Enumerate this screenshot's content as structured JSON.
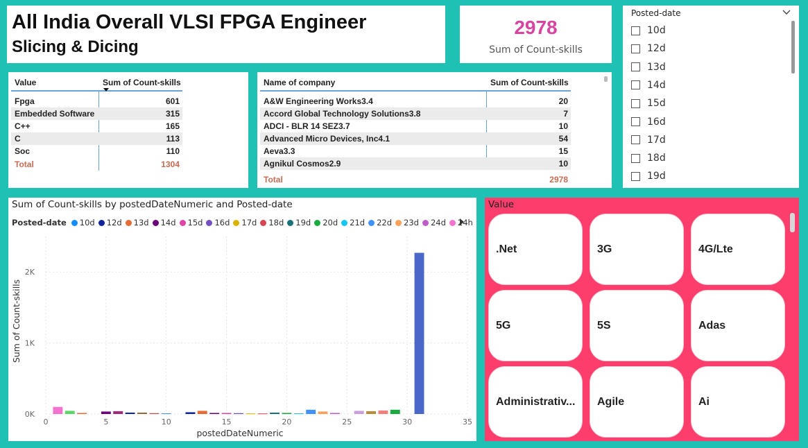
{
  "title": {
    "line1": "All India Overall VLSI FPGA Engineer",
    "line2": "Slicing & Dicing"
  },
  "card": {
    "value": "2978",
    "label": "Sum of Count-skills"
  },
  "slicer": {
    "header": "Posted-date",
    "items": [
      "10d",
      "12d",
      "13d",
      "14d",
      "15d",
      "16d",
      "17d",
      "18d",
      "19d"
    ]
  },
  "skills_table": {
    "col_value": "Value",
    "col_sum": "Sum of Count-skills",
    "rows": [
      {
        "name": "Fpga",
        "count": "601"
      },
      {
        "name": "Embedded Software",
        "count": "315"
      },
      {
        "name": "C++",
        "count": "165"
      },
      {
        "name": "C",
        "count": "113"
      },
      {
        "name": "Soc",
        "count": "110"
      }
    ],
    "total_label": "Total",
    "total_value": "1304"
  },
  "company_table": {
    "col_company": "Name of company",
    "col_sum": "Sum of Count-skills",
    "rows": [
      {
        "name": "A&W Engineering Works3.4",
        "count": "20"
      },
      {
        "name": "Accord Global Technology Solutions3.8",
        "count": "7"
      },
      {
        "name": "ADCI - BLR 14 SEZ3.7",
        "count": "10"
      },
      {
        "name": "Advanced Micro Devices, Inc4.1",
        "count": "54"
      },
      {
        "name": "Aeva3.3",
        "count": "15"
      },
      {
        "name": "Agnikul Cosmos2.9",
        "count": "10"
      }
    ],
    "total_label": "Total",
    "total_value": "2978"
  },
  "chart": {
    "title": "Sum of Count-skills by postedDateNumeric and Posted-date",
    "legend_title": "Posted-date"
  },
  "chart_data": {
    "type": "bar",
    "title": "Sum of Count-skills by postedDateNumeric and Posted-date",
    "xlabel": "postedDateNumeric",
    "ylabel": "Sum of Count-skills",
    "xlim": [
      0,
      35
    ],
    "ylim": [
      0,
      2500
    ],
    "x_ticks": [
      "0",
      "5",
      "10",
      "15",
      "20",
      "25",
      "30",
      "35"
    ],
    "y_ticks": [
      {
        "v": 0,
        "label": "0K"
      },
      {
        "v": 1000,
        "label": "1K"
      },
      {
        "v": 2000,
        "label": "2K"
      }
    ],
    "grid": true,
    "legend_position": "top-left",
    "series": [
      {
        "name": "10d",
        "color": "#118dff"
      },
      {
        "name": "12d",
        "color": "#12239e"
      },
      {
        "name": "13d",
        "color": "#e66c37"
      },
      {
        "name": "14d",
        "color": "#6b007b"
      },
      {
        "name": "15d",
        "color": "#e044a7"
      },
      {
        "name": "16d",
        "color": "#744ec2"
      },
      {
        "name": "17d",
        "color": "#d9b300"
      },
      {
        "name": "18d",
        "color": "#d64550"
      },
      {
        "name": "19d",
        "color": "#197278"
      },
      {
        "name": "20d",
        "color": "#1aab40"
      },
      {
        "name": "21d",
        "color": "#15c6f4"
      },
      {
        "name": "22d",
        "color": "#4092ff"
      },
      {
        "name": "23d",
        "color": "#ffa058"
      },
      {
        "name": "24d",
        "color": "#be5dc9"
      },
      {
        "name": "24h",
        "color": "#f472d0"
      }
    ],
    "bars": [
      {
        "x": 1,
        "value": 100,
        "color": "#f472d0"
      },
      {
        "x": 2,
        "value": 45,
        "color": "#5bd667"
      },
      {
        "x": 3,
        "value": 15,
        "color": "#e66c37"
      },
      {
        "x": 5,
        "value": 35,
        "color": "#6b007b"
      },
      {
        "x": 6,
        "value": 40,
        "color": "#a0297a"
      },
      {
        "x": 7,
        "value": 20,
        "color": "#12239e"
      },
      {
        "x": 8,
        "value": 20,
        "color": "#8a6d3b"
      },
      {
        "x": 9,
        "value": 12,
        "color": "#c04a4a"
      },
      {
        "x": 10,
        "value": 10,
        "color": "#4092ff"
      },
      {
        "x": 12,
        "value": 25,
        "color": "#12239e"
      },
      {
        "x": 13,
        "value": 45,
        "color": "#e66c37"
      },
      {
        "x": 14,
        "value": 15,
        "color": "#6b007b"
      },
      {
        "x": 15,
        "value": 15,
        "color": "#e044a7"
      },
      {
        "x": 16,
        "value": 12,
        "color": "#744ec2"
      },
      {
        "x": 17,
        "value": 8,
        "color": "#d9b300"
      },
      {
        "x": 18,
        "value": 8,
        "color": "#d64550"
      },
      {
        "x": 19,
        "value": 20,
        "color": "#197278"
      },
      {
        "x": 20,
        "value": 15,
        "color": "#1aab40"
      },
      {
        "x": 21,
        "value": 10,
        "color": "#15c6f4"
      },
      {
        "x": 22,
        "value": 60,
        "color": "#4092ff"
      },
      {
        "x": 23,
        "value": 35,
        "color": "#ffa058"
      },
      {
        "x": 24,
        "value": 15,
        "color": "#be5dc9"
      },
      {
        "x": 26,
        "value": 45,
        "color": "#c9a0dc"
      },
      {
        "x": 27,
        "value": 40,
        "color": "#b98b3e"
      },
      {
        "x": 28,
        "value": 50,
        "color": "#f08080"
      },
      {
        "x": 29,
        "value": 60,
        "color": "#1aab40"
      },
      {
        "x": 31,
        "value": 2270,
        "color": "#4a68c8"
      }
    ]
  },
  "tiles": {
    "header": "Value",
    "items": [
      ".Net",
      "3G",
      "4G/Lte",
      "5G",
      "5S",
      "Adas",
      "Administrativ...",
      "Agile",
      "Ai"
    ]
  }
}
